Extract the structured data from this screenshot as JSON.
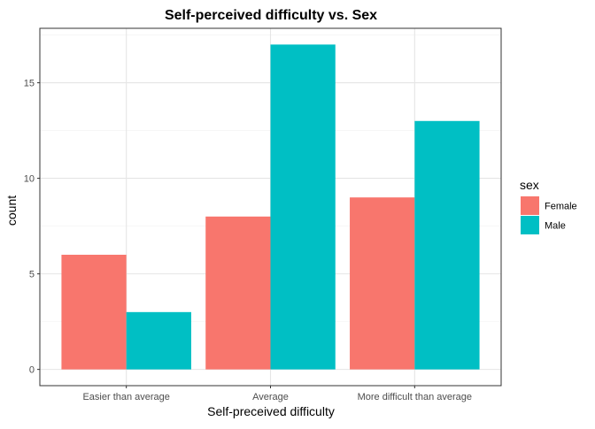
{
  "chart_data": {
    "type": "bar",
    "title": "Self-perceived difficulty vs. Sex",
    "xlabel": "Self-preceived difficulty",
    "ylabel": "count",
    "categories": [
      "Easier than average",
      "Average",
      "More difficult than average"
    ],
    "series": [
      {
        "name": "Female",
        "values": [
          6,
          8,
          9
        ],
        "color": "#F8766D"
      },
      {
        "name": "Male",
        "values": [
          3,
          17,
          13
        ],
        "color": "#00BFC4"
      }
    ],
    "yticks": [
      0,
      5,
      10,
      15
    ],
    "ylim": [
      -0.85,
      17.85
    ],
    "grid": true,
    "legend": {
      "title": "sex",
      "position": "right"
    }
  }
}
